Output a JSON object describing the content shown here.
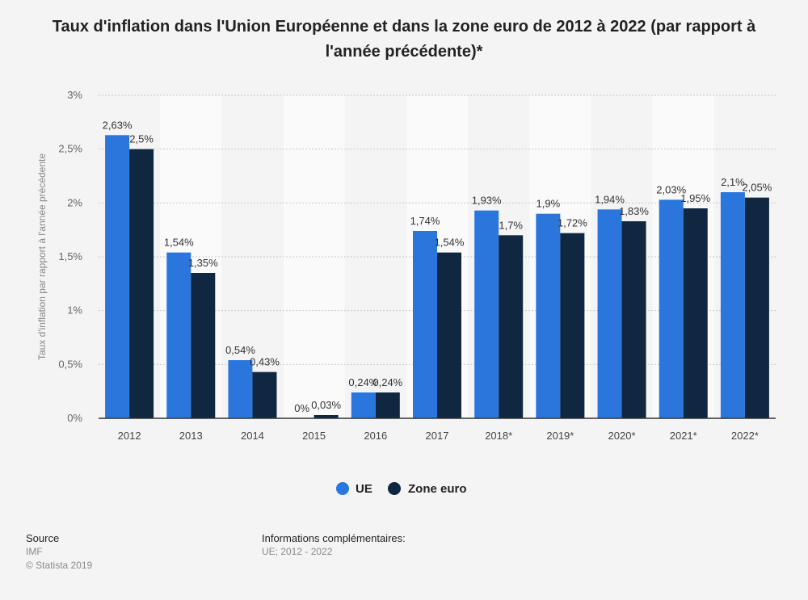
{
  "chart_data": {
    "type": "bar",
    "title": "Taux d'inflation dans l'Union Européenne et dans la zone euro de 2012 à 2022 (par rapport à l'année précédente)*",
    "ylabel": "Taux d'inflation par rapport à l'année précédente",
    "xlabel": "",
    "categories": [
      "2012",
      "2013",
      "2014",
      "2015",
      "2016",
      "2017",
      "2018*",
      "2019*",
      "2020*",
      "2021*",
      "2022*"
    ],
    "series": [
      {
        "name": "UE",
        "color": "#2a76dd",
        "values": [
          2.63,
          1.54,
          0.54,
          0,
          0.24,
          1.74,
          1.93,
          1.9,
          1.94,
          2.03,
          2.1
        ],
        "labels": [
          "2,63%",
          "1,54%",
          "0,54%",
          "0%",
          "0,24%",
          "1,74%",
          "1,93%",
          "1,9%",
          "1,94%",
          "2,03%",
          "2,1%"
        ]
      },
      {
        "name": "Zone euro",
        "color": "#0f2741",
        "values": [
          2.5,
          1.35,
          0.43,
          0.03,
          0.24,
          1.54,
          1.7,
          1.72,
          1.83,
          1.95,
          2.05
        ],
        "labels": [
          "2,5%",
          "1,35%",
          "0,43%",
          "0,03%",
          "0,24%",
          "1,54%",
          "1,7%",
          "1,72%",
          "1,83%",
          "1,95%",
          "2,05%"
        ]
      }
    ],
    "ylim": [
      0,
      3
    ],
    "yticks": [
      0,
      0.5,
      1,
      1.5,
      2,
      2.5,
      3
    ],
    "ytick_labels": [
      "0%",
      "0,5%",
      "1%",
      "1,5%",
      "2%",
      "2,5%",
      "3%"
    ],
    "grid": true,
    "legend_position": "bottom-center"
  },
  "footer": {
    "source_heading": "Source",
    "source_name": "IMF",
    "copyright": "© Statista 2019",
    "info_heading": "Informations complémentaires:",
    "info_text": "UE; 2012 - 2022"
  }
}
